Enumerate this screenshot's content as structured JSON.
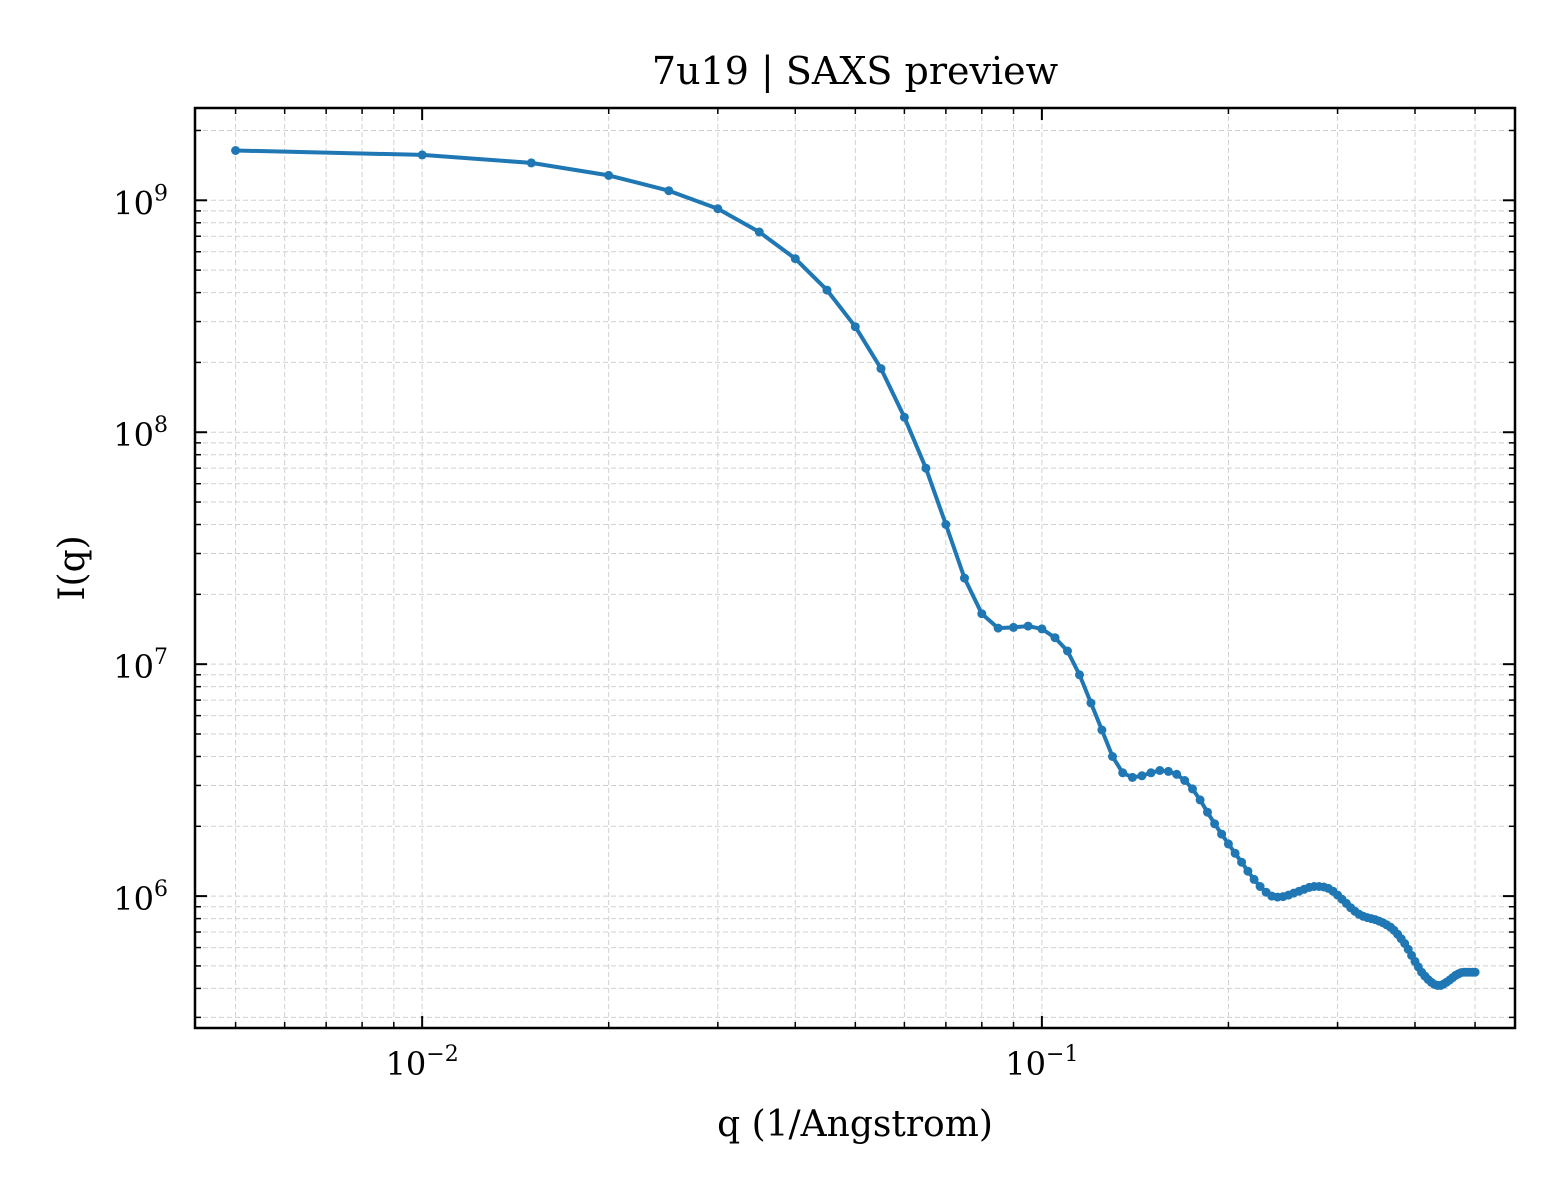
{
  "chart_data": {
    "type": "line",
    "title": "7u19 | SAXS preview",
    "xlabel": "q (1/Angstrom)",
    "ylabel": "I(q)",
    "xscale": "log",
    "yscale": "log",
    "xlim": [
      0.0043,
      0.58
    ],
    "ylim": [
      270000,
      2500000000
    ],
    "grid": true,
    "legend": "none",
    "x_ticks": [
      {
        "value": 0.01,
        "base": "10",
        "exp": "−2"
      },
      {
        "value": 0.1,
        "base": "10",
        "exp": "−1"
      }
    ],
    "y_ticks": [
      {
        "value": 1000000,
        "base": "10",
        "exp": "6"
      },
      {
        "value": 10000000,
        "base": "10",
        "exp": "7"
      },
      {
        "value": 100000000,
        "base": "10",
        "exp": "8"
      },
      {
        "value": 1000000000,
        "base": "10",
        "exp": "9"
      }
    ],
    "series": [
      {
        "color": "#1f77b4",
        "marker": "dot",
        "x": [
          0.005,
          0.01,
          0.015,
          0.02,
          0.025,
          0.03,
          0.035,
          0.04,
          0.045,
          0.05,
          0.055,
          0.06,
          0.065,
          0.07,
          0.075,
          0.08,
          0.085,
          0.09,
          0.095,
          0.1,
          0.105,
          0.11,
          0.115,
          0.12,
          0.125,
          0.13,
          0.135,
          0.14,
          0.145,
          0.15,
          0.155,
          0.16,
          0.165,
          0.17,
          0.175,
          0.18,
          0.185,
          0.19,
          0.195,
          0.2,
          0.205,
          0.21,
          0.215,
          0.22,
          0.225,
          0.23,
          0.235,
          0.24,
          0.245,
          0.25,
          0.255,
          0.26,
          0.265,
          0.27,
          0.275,
          0.28,
          0.285,
          0.29,
          0.295,
          0.3,
          0.305,
          0.31,
          0.315,
          0.32,
          0.325,
          0.33,
          0.335,
          0.34,
          0.345,
          0.35,
          0.355,
          0.36,
          0.365,
          0.37,
          0.375,
          0.38,
          0.385,
          0.39,
          0.395,
          0.4,
          0.405,
          0.41,
          0.415,
          0.42,
          0.425,
          0.43,
          0.435,
          0.44,
          0.445,
          0.45,
          0.455,
          0.46,
          0.465,
          0.47,
          0.475,
          0.48,
          0.485,
          0.49,
          0.495,
          0.5
        ],
        "y": [
          1640000000,
          1570000000,
          1450000000,
          1280000000,
          1100000000,
          920000000,
          730000000,
          560000000,
          410000000,
          285000000,
          188000000,
          116000000,
          70000000,
          40000000,
          23500000,
          16500000,
          14300000,
          14400000,
          14600000,
          14200000,
          13000000,
          11400000,
          9000000,
          6800000,
          5200000,
          4000000,
          3400000,
          3250000,
          3300000,
          3400000,
          3480000,
          3450000,
          3350000,
          3150000,
          2900000,
          2600000,
          2300000,
          2050000,
          1850000,
          1680000,
          1530000,
          1400000,
          1280000,
          1180000,
          1100000,
          1040000,
          1000000,
          990000,
          995000,
          1010000,
          1030000,
          1050000,
          1070000,
          1090000,
          1100000,
          1100000,
          1095000,
          1080000,
          1050000,
          1010000,
          970000,
          930000,
          890000,
          860000,
          835000,
          818000,
          808000,
          800000,
          792000,
          780000,
          768000,
          752000,
          735000,
          712000,
          685000,
          655000,
          625000,
          590000,
          555000,
          523000,
          495000,
          470000,
          452000,
          437000,
          425000,
          416000,
          412000,
          412000,
          418000,
          426000,
          435000,
          445000,
          455000,
          462000,
          468000,
          470000,
          470000,
          470000,
          470000,
          470000
        ]
      }
    ]
  }
}
